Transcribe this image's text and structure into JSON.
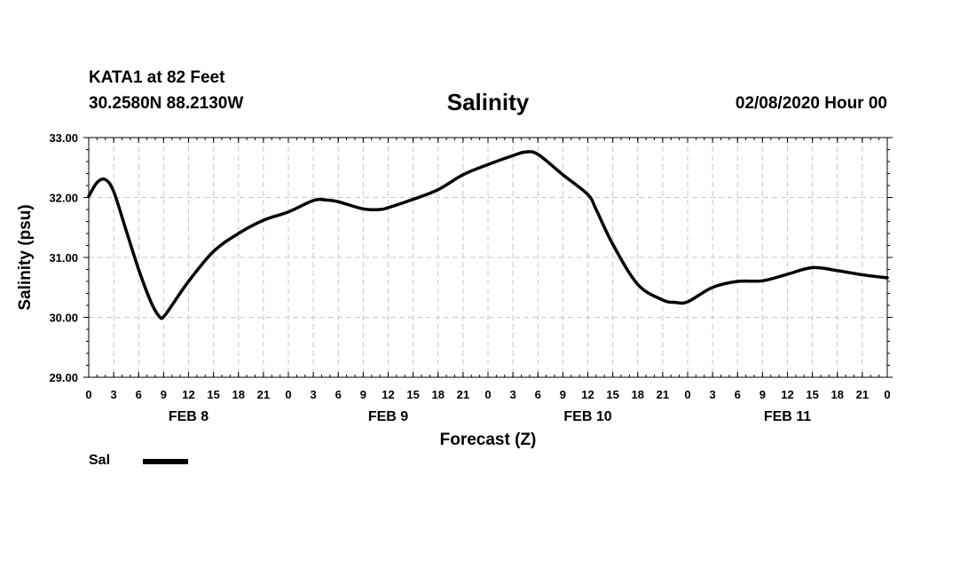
{
  "header": {
    "station": "KATA1 at 82 Feet",
    "coordinates": "30.2580N 88.2130W",
    "timestamp": "02/08/2020 Hour 00"
  },
  "chart_data": {
    "type": "line",
    "title": "Salinity",
    "xlabel": "Forecast (Z)",
    "ylabel": "Salinity (psu)",
    "x_unit": "forecast hour",
    "xlim": [
      0,
      96
    ],
    "ylim": [
      29.0,
      33.0
    ],
    "grid": true,
    "yticks": [
      "29.00",
      "30.00",
      "31.00",
      "32.00",
      "33.00"
    ],
    "xtick_labels": [
      "0",
      "3",
      "6",
      "9",
      "12",
      "15",
      "18",
      "21",
      "0",
      "3",
      "6",
      "9",
      "12",
      "15",
      "18",
      "21",
      "0",
      "3",
      "6",
      "9",
      "12",
      "15",
      "18",
      "21",
      "0",
      "3",
      "6",
      "9",
      "12",
      "15",
      "18",
      "21",
      "0"
    ],
    "date_labels": [
      {
        "label": "FEB 8",
        "hour": 12
      },
      {
        "label": "FEB 9",
        "hour": 36
      },
      {
        "label": "FEB 10",
        "hour": 60
      },
      {
        "label": "FEB 11",
        "hour": 84
      }
    ],
    "legend": {
      "placement": "bottom-left"
    },
    "series": [
      {
        "name": "Sal",
        "color": "#000000",
        "x": [
          0,
          1,
          2,
          3,
          4.5,
          6,
          7.5,
          8.5,
          9,
          10,
          12,
          15,
          18,
          21,
          24,
          27,
          28.5,
          30,
          33,
          35,
          36,
          39,
          42,
          45,
          48,
          51,
          52.5,
          54,
          57,
          60,
          61,
          63,
          66,
          69,
          70.5,
          72,
          75,
          78,
          81,
          84,
          87,
          90,
          93,
          96
        ],
        "values": [
          32.02,
          32.25,
          32.3,
          32.1,
          31.45,
          30.8,
          30.25,
          30.01,
          30.01,
          30.2,
          30.6,
          31.1,
          31.4,
          31.62,
          31.76,
          31.95,
          31.96,
          31.93,
          31.81,
          31.8,
          31.83,
          31.97,
          32.13,
          32.38,
          32.55,
          32.7,
          32.76,
          32.72,
          32.38,
          32.05,
          31.8,
          31.22,
          30.55,
          30.29,
          30.25,
          30.26,
          30.5,
          30.6,
          30.61,
          30.72,
          30.83,
          30.78,
          30.71,
          30.66
        ]
      }
    ]
  },
  "legend_items": [
    {
      "label": "Sal",
      "color": "#000000"
    }
  ]
}
